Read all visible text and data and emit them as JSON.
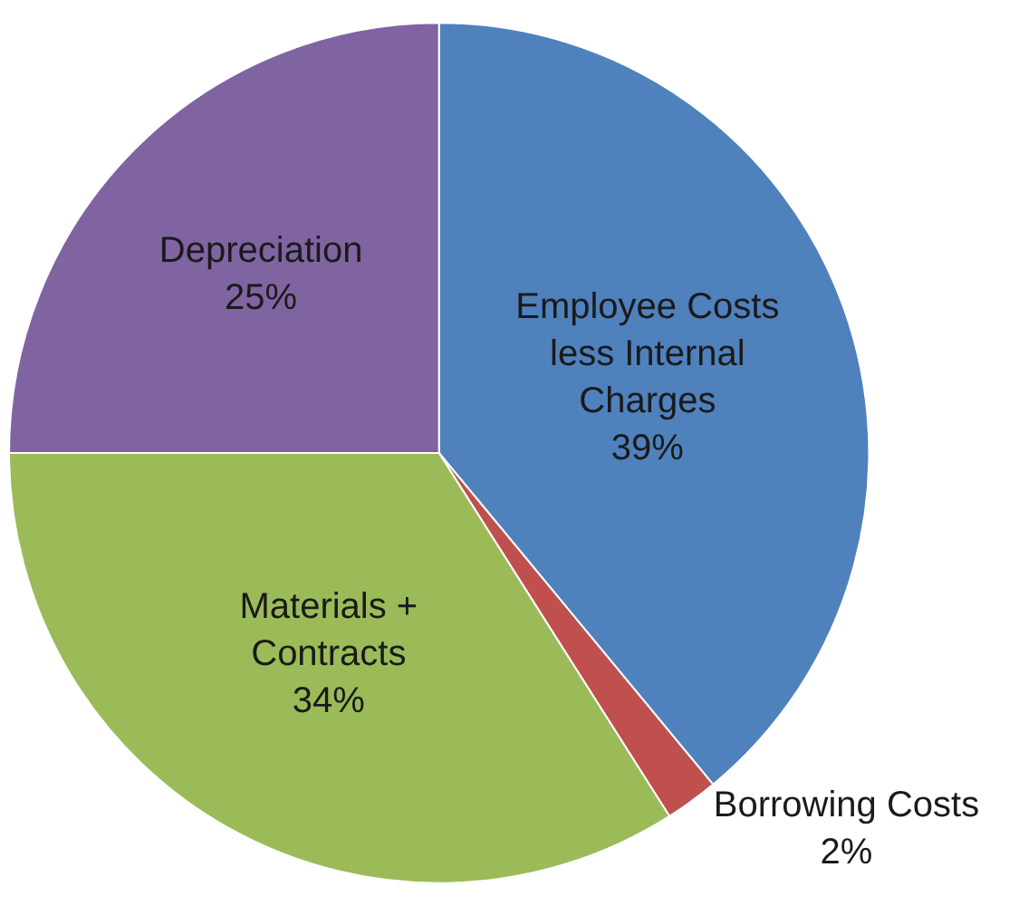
{
  "chart_data": {
    "type": "pie",
    "categories": [
      "Employee Costs less Internal Charges",
      "Borrowing Costs",
      "Materials + Contracts",
      "Depreciation"
    ],
    "values": [
      39,
      2,
      34,
      25
    ],
    "colors": [
      "#4f81bd",
      "#c0504d",
      "#9bbb59",
      "#8064a2"
    ],
    "value_labels": [
      "39%",
      "2%",
      "34%",
      "25%"
    ],
    "legend": false
  }
}
